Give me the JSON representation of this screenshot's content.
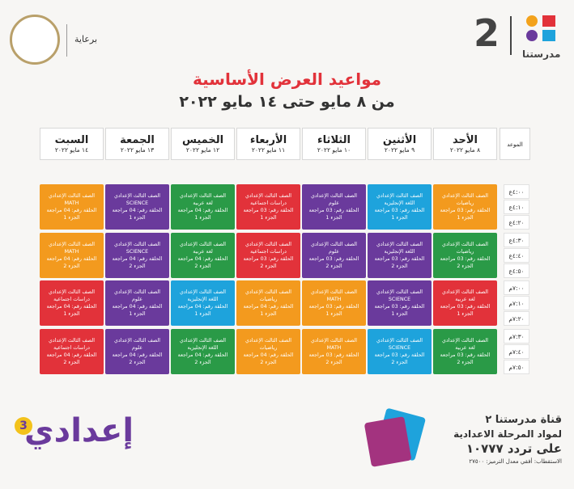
{
  "header": {
    "logo_text": "مدرستنا",
    "logo_number": "2",
    "sponsor": "برعاية"
  },
  "title": "مواعيد العرض الأساسية",
  "subtitle": "من ٨ مايو حتى ١٤ مايو ٢٠٢٢",
  "table": {
    "time_header": "الموعد",
    "days": [
      {
        "name": "الأحد",
        "date": "٨ مايو ٢٠٢٢"
      },
      {
        "name": "الأثنين",
        "date": "٩ مايو ٢٠٢٢"
      },
      {
        "name": "الثلاثاء",
        "date": "١٠ مايو ٢٠٢٢"
      },
      {
        "name": "الأربعاء",
        "date": "١١ مايو ٢٠٢٢"
      },
      {
        "name": "الخميس",
        "date": "١٢ مايو ٢٠٢٢"
      },
      {
        "name": "الجمعة",
        "date": "١٣ مايو ٢٠٢٢"
      },
      {
        "name": "السبت",
        "date": "١٤ مايو ٢٠٢٢"
      }
    ],
    "times": [
      "٤:٠٠ع",
      "٤:١٠ع",
      "٤:٢٠ع",
      "٤:٣٠ع",
      "٤:٤٠ع",
      "٤:٥٠ع",
      "٧:٠٠م",
      "٧:١٠م",
      "٧:٢٠م",
      "٧:٣٠م",
      "٧:٤٠م",
      "٧:٥٠م"
    ],
    "blocks": [
      [
        {
          "grade": "الصف الثالث الإعدادي",
          "subject": "رياضيات",
          "episode": "الحلقة رقم: 03 مراجعة",
          "part": "الجزء 1",
          "color": "#f39a1e"
        },
        {
          "grade": "الصف الثالث الإعدادي",
          "subject": "اللغة الإنجليزية",
          "episode": "الحلقة رقم: 03 مراجعة",
          "part": "الجزء 1",
          "color": "#1ea3dc"
        },
        {
          "grade": "الصف الثالث الإعدادي",
          "subject": "علوم",
          "episode": "الحلقة رقم: 03 مراجعة",
          "part": "الجزء 1",
          "color": "#6a3a9c"
        },
        {
          "grade": "الصف الثالث الإعدادي",
          "subject": "دراسات اجتماعية",
          "episode": "الحلقة رقم: 03 مراجعة",
          "part": "الجزء 1",
          "color": "#e2323a"
        },
        {
          "grade": "الصف الثالث الإعدادي",
          "subject": "لغة عربية",
          "episode": "الحلقة رقم: 04 مراجعة",
          "part": "الجزء 1",
          "color": "#2a9a47"
        },
        {
          "grade": "الصف الثالث الإعدادي",
          "subject": "SCIENCE",
          "episode": "الحلقة رقم: 04 مراجعة",
          "part": "الجزء 1",
          "color": "#6a3a9c"
        },
        {
          "grade": "الصف الثالث الإعدادي",
          "subject": "MATH",
          "episode": "الحلقة رقم: 04 مراجعة",
          "part": "الجزء 1",
          "color": "#f39a1e"
        }
      ],
      [
        {
          "grade": "الصف الثالث الإعدادي",
          "subject": "رياضيات",
          "episode": "الحلقة رقم: 03 مراجعة",
          "part": "الجزء 2",
          "color": "#2a9a47"
        },
        {
          "grade": "الصف الثالث الإعدادي",
          "subject": "اللغة الإنجليزية",
          "episode": "الحلقة رقم: 03 مراجعة",
          "part": "الجزء 2",
          "color": "#6a3a9c"
        },
        {
          "grade": "الصف الثالث الإعدادي",
          "subject": "علوم",
          "episode": "الحلقة رقم: 03 مراجعة",
          "part": "الجزء 2",
          "color": "#6a3a9c"
        },
        {
          "grade": "الصف الثالث الإعدادي",
          "subject": "دراسات اجتماعية",
          "episode": "الحلقة رقم: 03 مراجعة",
          "part": "الجزء 2",
          "color": "#e2323a"
        },
        {
          "grade": "الصف الثالث الإعدادي",
          "subject": "لغة عربية",
          "episode": "الحلقة رقم: 04 مراجعة",
          "part": "الجزء 2",
          "color": "#2a9a47"
        },
        {
          "grade": "الصف الثالث الإعدادي",
          "subject": "SCIENCE",
          "episode": "الحلقة رقم: 04 مراجعة",
          "part": "الجزء 2",
          "color": "#6a3a9c"
        },
        {
          "grade": "الصف الثالث الإعدادي",
          "subject": "MATH",
          "episode": "الحلقة رقم: 04 مراجعة",
          "part": "الجزء 2",
          "color": "#f39a1e"
        }
      ],
      [
        {
          "grade": "الصف الثالث الإعدادي",
          "subject": "لغة عربية",
          "episode": "الحلقة رقم: 03 مراجعة",
          "part": "الجزء 1",
          "color": "#e2323a"
        },
        {
          "grade": "الصف الثالث الإعدادي",
          "subject": "SCIENCE",
          "episode": "الحلقة رقم: 03 مراجعة",
          "part": "الجزء 1",
          "color": "#6a3a9c"
        },
        {
          "grade": "الصف الثالث الإعدادي",
          "subject": "MATH",
          "episode": "الحلقة رقم: 03 مراجعة",
          "part": "الجزء 1",
          "color": "#f39a1e"
        },
        {
          "grade": "الصف الثالث الإعدادي",
          "subject": "رياضيات",
          "episode": "الحلقة رقم: 04 مراجعة",
          "part": "الجزء 1",
          "color": "#f39a1e"
        },
        {
          "grade": "الصف الثالث الإعدادي",
          "subject": "اللغة الإنجليزية",
          "episode": "الحلقة رقم: 04 مراجعة",
          "part": "الجزء 1",
          "color": "#1ea3dc"
        },
        {
          "grade": "الصف الثالث الإعدادي",
          "subject": "علوم",
          "episode": "الحلقة رقم: 04 مراجعة",
          "part": "الجزء 1",
          "color": "#6a3a9c"
        },
        {
          "grade": "الصف الثالث الإعدادي",
          "subject": "دراسات اجتماعية",
          "episode": "الحلقة رقم: 04 مراجعة",
          "part": "الجزء 1",
          "color": "#e2323a"
        }
      ],
      [
        {
          "grade": "الصف الثالث الإعدادي",
          "subject": "لغة عربية",
          "episode": "الحلقة رقم: 03 مراجعة",
          "part": "الجزء 2",
          "color": "#2a9a47"
        },
        {
          "grade": "الصف الثالث الإعدادي",
          "subject": "SCIENCE",
          "episode": "الحلقة رقم: 03 مراجعة",
          "part": "الجزء 2",
          "color": "#1ea3dc"
        },
        {
          "grade": "الصف الثالث الإعدادي",
          "subject": "MATH",
          "episode": "الحلقة رقم: 03 مراجعة",
          "part": "الجزء 2",
          "color": "#f39a1e"
        },
        {
          "grade": "الصف الثالث الإعدادي",
          "subject": "رياضيات",
          "episode": "الحلقة رقم: 04 مراجعة",
          "part": "الجزء 2",
          "color": "#f39a1e"
        },
        {
          "grade": "الصف الثالث الإعدادي",
          "subject": "اللغة الإنجليزية",
          "episode": "الحلقة رقم: 04 مراجعة",
          "part": "الجزء 2",
          "color": "#2a9a47"
        },
        {
          "grade": "الصف الثالث الإعدادي",
          "subject": "علوم",
          "episode": "الحلقة رقم: 04 مراجعة",
          "part": "الجزء 2",
          "color": "#6a3a9c"
        },
        {
          "grade": "الصف الثالث الإعدادي",
          "subject": "دراسات اجتماعية",
          "episode": "الحلقة رقم: 04 مراجعة",
          "part": "الجزء 2",
          "color": "#e2323a"
        }
      ]
    ]
  },
  "footer": {
    "brand": "إعدادي",
    "brand_number": "3",
    "channel": "قناة مدرستنا ٢",
    "line2": "لمواد المرحلة الاعدادية",
    "frequency": "على تردد ١٠٧٧٧",
    "details": "الاستقطاب: أفقي معدل الترميز: ٢٧٥٠٠"
  }
}
